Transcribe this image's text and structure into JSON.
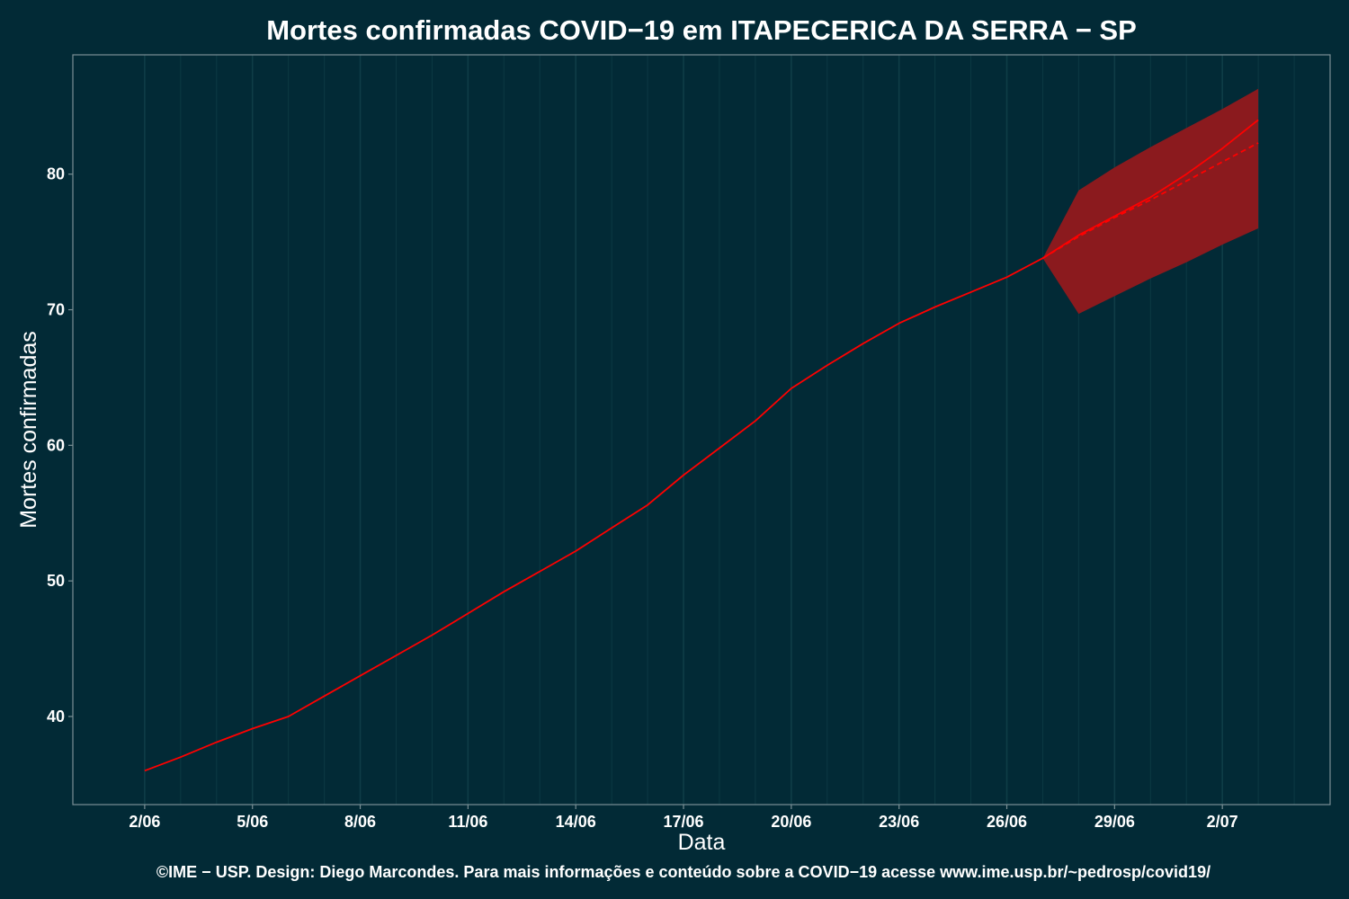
{
  "colors": {
    "background": "#022a36",
    "gridline": "#0f3d47",
    "panel_border": "#7a8f95",
    "series_line": "#ff0000",
    "forecast_band": "#8b1a1e",
    "text": "#ffffff"
  },
  "chart_data": {
    "type": "line",
    "title": "Mortes confirmadas COVID−19 em ITAPECERICA DA SERRA − SP",
    "xlabel": "Data",
    "ylabel": "Mortes confirmadas",
    "caption": "©IME − USP. Design: Diego Marcondes. Para mais informações e conteúdo sobre a COVID−19 acesse www.ime.usp.br/~pedrosp/covid19/",
    "x_dates": [
      "2020-06-02",
      "2020-06-03",
      "2020-06-04",
      "2020-06-05",
      "2020-06-06",
      "2020-06-07",
      "2020-06-08",
      "2020-06-09",
      "2020-06-10",
      "2020-06-11",
      "2020-06-12",
      "2020-06-13",
      "2020-06-14",
      "2020-06-15",
      "2020-06-16",
      "2020-06-17",
      "2020-06-18",
      "2020-06-19",
      "2020-06-20",
      "2020-06-21",
      "2020-06-22",
      "2020-06-23",
      "2020-06-24",
      "2020-06-25",
      "2020-06-26",
      "2020-06-27",
      "2020-06-28",
      "2020-06-29",
      "2020-06-30",
      "2020-07-01",
      "2020-07-02",
      "2020-07-03"
    ],
    "x_tick_labels": [
      "2/06",
      "5/06",
      "8/06",
      "11/06",
      "14/06",
      "17/06",
      "20/06",
      "23/06",
      "26/06",
      "29/06",
      "2/07"
    ],
    "x_tick_dates": [
      "2020-06-02",
      "2020-06-05",
      "2020-06-08",
      "2020-06-11",
      "2020-06-14",
      "2020-06-17",
      "2020-06-20",
      "2020-06-23",
      "2020-06-26",
      "2020-06-29",
      "2020-07-02"
    ],
    "xlim": [
      "2020-05-31",
      "2020-07-05"
    ],
    "ylim": [
      33.5,
      88.8
    ],
    "y_ticks": [
      40,
      50,
      60,
      70,
      80
    ],
    "grid": true,
    "legend": "none",
    "series": [
      {
        "style": "solid",
        "dates": [
          "2020-06-02",
          "2020-06-03",
          "2020-06-04",
          "2020-06-05",
          "2020-06-06",
          "2020-06-07",
          "2020-06-08",
          "2020-06-09",
          "2020-06-10",
          "2020-06-11",
          "2020-06-12",
          "2020-06-13",
          "2020-06-14",
          "2020-06-15",
          "2020-06-16",
          "2020-06-17",
          "2020-06-18",
          "2020-06-19",
          "2020-06-20",
          "2020-06-21",
          "2020-06-22",
          "2020-06-23",
          "2020-06-24",
          "2020-06-25",
          "2020-06-26",
          "2020-06-27",
          "2020-06-28",
          "2020-06-29",
          "2020-06-30",
          "2020-07-01",
          "2020-07-02",
          "2020-07-03"
        ],
        "values": [
          36,
          37,
          38.1,
          39.1,
          40,
          41.5,
          43,
          44.5,
          46,
          47.6,
          49.2,
          50.7,
          52.2,
          53.9,
          55.6,
          57.8,
          59.8,
          61.8,
          64.2,
          65.9,
          67.5,
          69.0,
          70.2,
          71.3,
          72.4,
          73.8,
          75.5,
          76.9,
          78.3,
          80.0,
          81.9,
          84.0
        ]
      },
      {
        "style": "dashed",
        "dates": [
          "2020-06-27",
          "2020-06-28",
          "2020-06-29",
          "2020-06-30",
          "2020-07-01",
          "2020-07-02",
          "2020-07-03"
        ],
        "values": [
          73.8,
          75.4,
          76.8,
          78.1,
          79.5,
          80.9,
          82.3
        ]
      }
    ],
    "forecast_band": {
      "dates": [
        "2020-06-27",
        "2020-06-28",
        "2020-06-29",
        "2020-06-30",
        "2020-07-01",
        "2020-07-02",
        "2020-07-03"
      ],
      "upper": [
        73.8,
        78.8,
        80.5,
        82.0,
        83.4,
        84.8,
        86.3
      ],
      "lower": [
        73.8,
        69.7,
        71.0,
        72.3,
        73.5,
        74.8,
        76.0
      ]
    }
  }
}
